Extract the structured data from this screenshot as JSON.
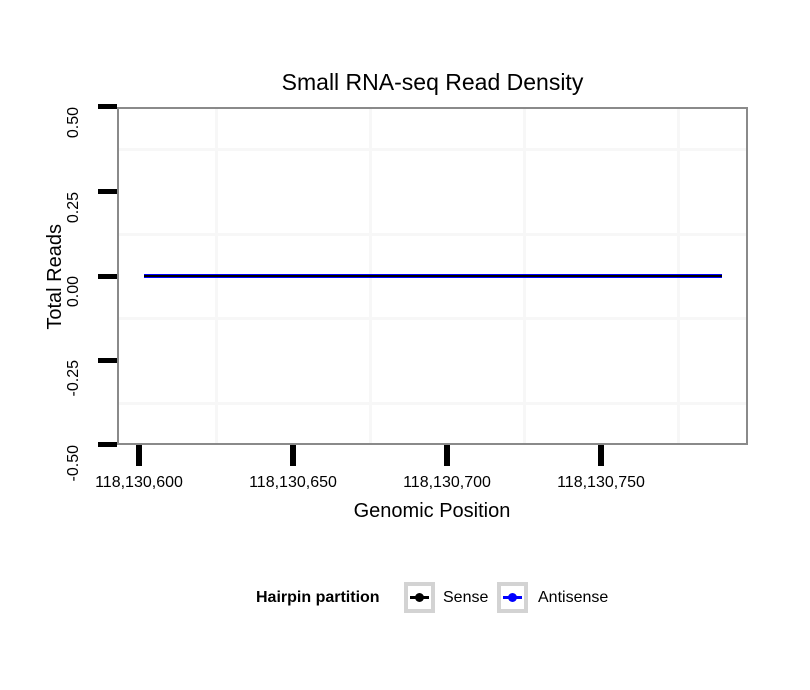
{
  "title": "Small RNA-seq Read Density",
  "axes": {
    "x": {
      "title": "Genomic Position",
      "tick_labels": [
        "118,130,600",
        "118,130,650",
        "118,130,700",
        "118,130,750"
      ]
    },
    "y": {
      "title": "Total Reads",
      "tick_labels": [
        "0.50",
        "0.25",
        "0.00",
        "-0.25",
        "-0.50"
      ]
    }
  },
  "legend": {
    "title": "Hairpin partition",
    "items": [
      {
        "label": "Sense",
        "color": "#000000"
      },
      {
        "label": "Antisense",
        "color": "#0000FF"
      }
    ]
  },
  "colors": {
    "panel_border": "#8a8a8a",
    "tick_mark": "#000000",
    "minor_gridline": "#f7f7f7",
    "legend_key_border": "#d3d3d3",
    "sense_line": "#000000",
    "antisense_line": "#0000FF"
  },
  "chart_data": {
    "type": "line",
    "title": "Small RNA-seq Read Density",
    "xlabel": "Genomic Position",
    "ylabel": "Total Reads",
    "xlim": [
      118130593,
      118130798
    ],
    "ylim": [
      -0.5,
      0.5
    ],
    "x_ticks": [
      118130600,
      118130650,
      118130700,
      118130750
    ],
    "y_ticks": [
      0.5,
      0.25,
      0.0,
      -0.25,
      -0.5
    ],
    "grid": "minor gridlines only, very light gray; white panel background",
    "legend_title": "Hairpin partition",
    "legend_position": "bottom",
    "series": [
      {
        "name": "Sense",
        "color": "#000000",
        "x": [
          118130601,
          118130789
        ],
        "y": [
          0,
          0
        ]
      },
      {
        "name": "Antisense",
        "color": "#0000FF",
        "x": [
          118130601,
          118130789
        ],
        "y": [
          0,
          0
        ]
      }
    ]
  }
}
